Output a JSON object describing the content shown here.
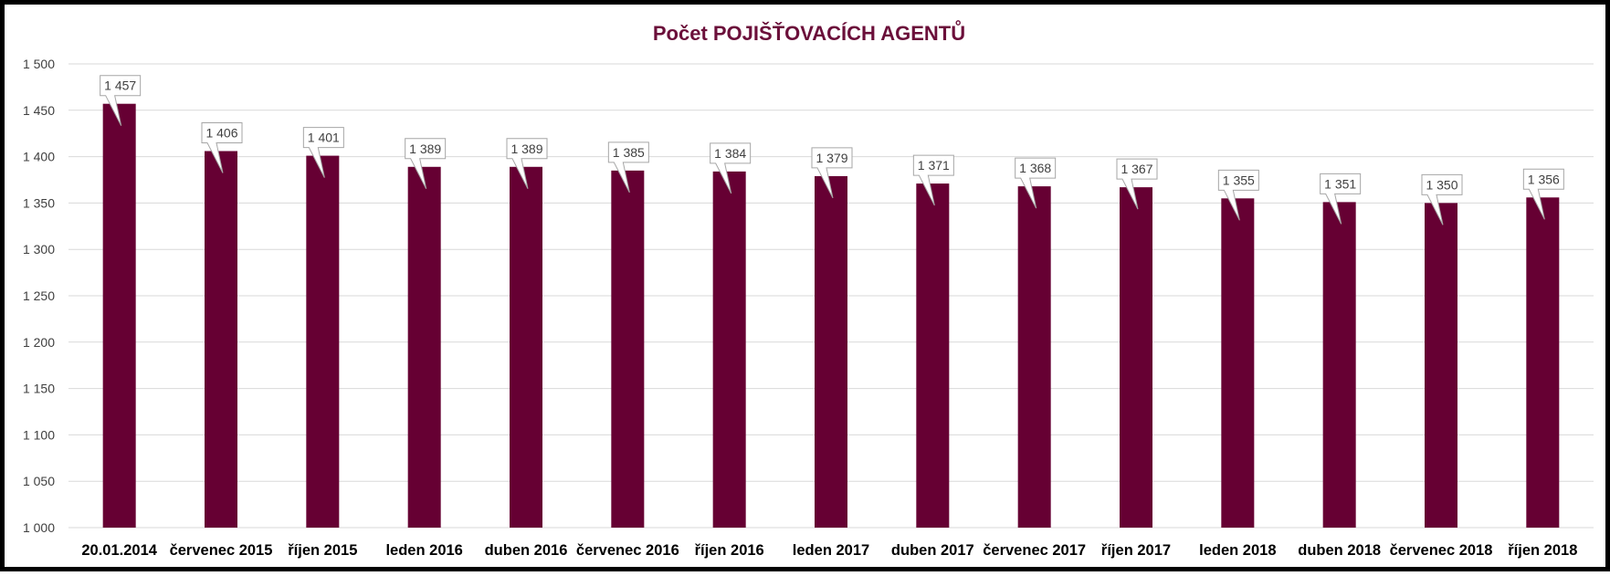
{
  "chart_data": {
    "type": "bar",
    "title": "Počet POJIŠŤOVACÍCH AGENTŮ",
    "categories": [
      "20.01.2014",
      "červenec 2015",
      "říjen 2015",
      "leden 2016",
      "duben 2016",
      "červenec 2016",
      "říjen 2016",
      "leden 2017",
      "duben 2017",
      "červenec 2017",
      "říjen 2017",
      "leden 2018",
      "duben 2018",
      "červenec 2018",
      "říjen 2018"
    ],
    "values": [
      1457,
      1406,
      1401,
      1389,
      1389,
      1385,
      1384,
      1379,
      1371,
      1368,
      1367,
      1355,
      1351,
      1350,
      1356
    ],
    "data_labels": [
      "1 457",
      "1 406",
      "1 401",
      "1 389",
      "1 389",
      "1 385",
      "1 384",
      "1 379",
      "1 371",
      "1 368",
      "1 367",
      "1 355",
      "1 351",
      "1 350",
      "1 356"
    ],
    "ylim": [
      1000,
      1500
    ],
    "yticks": [
      1000,
      1050,
      1100,
      1150,
      1200,
      1250,
      1300,
      1350,
      1400,
      1450,
      1500
    ],
    "ytick_labels": [
      "1 000",
      "1 050",
      "1 100",
      "1 150",
      "1 200",
      "1 250",
      "1 300",
      "1 350",
      "1 400",
      "1 450",
      "1 500"
    ],
    "xlabel": "",
    "ylabel": "",
    "grid": true,
    "legend": "none",
    "bar_color": "#660033",
    "title_color": "#6b0f3a"
  }
}
